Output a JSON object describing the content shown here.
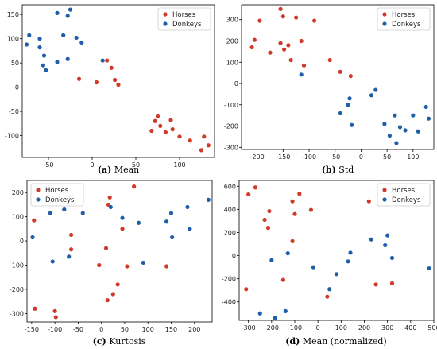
{
  "colors": {
    "horses": "#d03a28",
    "donkeys": "#1f5fa8"
  },
  "chart_data": [
    {
      "type": "scatter",
      "caption_label": "(a)",
      "caption_text": "Mean",
      "xlim": [
        -80,
        140
      ],
      "ylim": [
        -145,
        170
      ],
      "xticks": [
        -50,
        0,
        50,
        100
      ],
      "yticks": [
        -100,
        -50,
        0,
        50,
        100,
        150
      ],
      "legend_position": "top-right",
      "series": [
        {
          "name": "Horses",
          "color": "#d03a28",
          "points": [
            [
              -15,
              17
            ],
            [
              5,
              10
            ],
            [
              17,
              55
            ],
            [
              22,
              40
            ],
            [
              26,
              15
            ],
            [
              30,
              5
            ],
            [
              68,
              -90
            ],
            [
              72,
              -70
            ],
            [
              75,
              -60
            ],
            [
              78,
              -80
            ],
            [
              84,
              -93
            ],
            [
              90,
              -68
            ],
            [
              92,
              -87
            ],
            [
              100,
              -102
            ],
            [
              112,
              -110
            ],
            [
              125,
              -130
            ],
            [
              128,
              -102
            ],
            [
              133,
              -120
            ]
          ]
        },
        {
          "name": "Donkeys",
          "color": "#1f5fa8",
          "points": [
            [
              -75,
              88
            ],
            [
              -72,
              107
            ],
            [
              -60,
              100
            ],
            [
              -60,
              82
            ],
            [
              -55,
              65
            ],
            [
              -56,
              45
            ],
            [
              -53,
              35
            ],
            [
              -40,
              153
            ],
            [
              -40,
              52
            ],
            [
              -33,
              107
            ],
            [
              -28,
              147
            ],
            [
              -25,
              160
            ],
            [
              -28,
              58
            ],
            [
              -18,
              102
            ],
            [
              -12,
              92
            ],
            [
              12,
              55
            ]
          ]
        }
      ]
    },
    {
      "type": "scatter",
      "caption_label": "(b)",
      "caption_text": "Std",
      "xlim": [
        -230,
        140
      ],
      "ylim": [
        -310,
        370
      ],
      "xticks": [
        -200,
        -150,
        -100,
        -50,
        0,
        50,
        100
      ],
      "yticks": [
        -300,
        -200,
        -100,
        0,
        100,
        200,
        300
      ],
      "legend_position": "top-right",
      "series": [
        {
          "name": "Horses",
          "color": "#d03a28",
          "points": [
            [
              -210,
              170
            ],
            [
              -205,
              205
            ],
            [
              -195,
              295
            ],
            [
              -175,
              145
            ],
            [
              -155,
              350
            ],
            [
              -155,
              190
            ],
            [
              -150,
              315
            ],
            [
              -148,
              160
            ],
            [
              -140,
              180
            ],
            [
              -135,
              110
            ],
            [
              -125,
              310
            ],
            [
              -115,
              200
            ],
            [
              -110,
              85
            ],
            [
              -90,
              295
            ],
            [
              -60,
              110
            ],
            [
              -40,
              55
            ],
            [
              -20,
              35
            ]
          ]
        },
        {
          "name": "Donkeys",
          "color": "#1f5fa8",
          "points": [
            [
              -115,
              42
            ],
            [
              -40,
              -140
            ],
            [
              -25,
              -100
            ],
            [
              -22,
              -70
            ],
            [
              -18,
              -195
            ],
            [
              20,
              -55
            ],
            [
              28,
              -30
            ],
            [
              45,
              -190
            ],
            [
              55,
              -245
            ],
            [
              65,
              -150
            ],
            [
              68,
              -280
            ],
            [
              75,
              -205
            ],
            [
              85,
              -220
            ],
            [
              100,
              -150
            ],
            [
              110,
              -225
            ],
            [
              125,
              -110
            ],
            [
              130,
              -165
            ]
          ]
        }
      ]
    },
    {
      "type": "scatter",
      "caption_label": "(c)",
      "caption_text": "Kurtosis",
      "xlim": [
        -160,
        238
      ],
      "ylim": [
        -335,
        250
      ],
      "xticks": [
        -150,
        -100,
        -50,
        0,
        50,
        100,
        150,
        200
      ],
      "yticks": [
        -300,
        -200,
        -100,
        0,
        100,
        200
      ],
      "legend_position": "top-left",
      "series": [
        {
          "name": "Horses",
          "color": "#d03a28",
          "points": [
            [
              -145,
              85
            ],
            [
              -143,
              -280
            ],
            [
              -100,
              -290
            ],
            [
              -98,
              -315
            ],
            [
              -65,
              25
            ],
            [
              -65,
              -35
            ],
            [
              -5,
              -100
            ],
            [
              10,
              -30
            ],
            [
              15,
              150
            ],
            [
              18,
              180
            ],
            [
              13,
              -245
            ],
            [
              25,
              -220
            ],
            [
              35,
              -180
            ],
            [
              45,
              50
            ],
            [
              55,
              -105
            ],
            [
              70,
              225
            ],
            [
              140,
              -105
            ]
          ]
        },
        {
          "name": "Donkeys",
          "color": "#1f5fa8",
          "points": [
            [
              -148,
              15
            ],
            [
              -110,
              115
            ],
            [
              -105,
              -85
            ],
            [
              -80,
              130
            ],
            [
              -70,
              -65
            ],
            [
              -40,
              115
            ],
            [
              20,
              140
            ],
            [
              45,
              95
            ],
            [
              80,
              75
            ],
            [
              90,
              -90
            ],
            [
              140,
              80
            ],
            [
              150,
              115
            ],
            [
              152,
              15
            ],
            [
              185,
              140
            ],
            [
              190,
              50
            ],
            [
              230,
              170
            ]
          ]
        }
      ]
    },
    {
      "type": "scatter",
      "caption_label": "(d)",
      "caption_text": "Mean (normalized)",
      "xlim": [
        -340,
        500
      ],
      "ylim": [
        -560,
        650
      ],
      "xticks": [
        -300,
        -200,
        -100,
        0,
        100,
        200,
        300,
        400,
        500
      ],
      "yticks": [
        -400,
        -200,
        0,
        200,
        400,
        600
      ],
      "legend_position": "top-right",
      "series": [
        {
          "name": "Horses",
          "color": "#d03a28",
          "points": [
            [
              -310,
              -290
            ],
            [
              -300,
              530
            ],
            [
              -270,
              590
            ],
            [
              -230,
              310
            ],
            [
              -210,
              385
            ],
            [
              -215,
              240
            ],
            [
              -150,
              -210
            ],
            [
              -110,
              125
            ],
            [
              -110,
              470
            ],
            [
              -100,
              360
            ],
            [
              -80,
              535
            ],
            [
              -30,
              395
            ],
            [
              40,
              -355
            ],
            [
              220,
              470
            ],
            [
              250,
              -250
            ],
            [
              320,
              -240
            ]
          ]
        },
        {
          "name": "Donkeys",
          "color": "#1f5fa8",
          "points": [
            [
              -250,
              -500
            ],
            [
              -200,
              -40
            ],
            [
              -185,
              -540
            ],
            [
              -140,
              -480
            ],
            [
              -130,
              20
            ],
            [
              -20,
              -100
            ],
            [
              50,
              -290
            ],
            [
              80,
              -160
            ],
            [
              130,
              -50
            ],
            [
              140,
              25
            ],
            [
              230,
              140
            ],
            [
              290,
              90
            ],
            [
              300,
              175
            ],
            [
              320,
              -20
            ],
            [
              480,
              -110
            ]
          ]
        }
      ]
    }
  ]
}
